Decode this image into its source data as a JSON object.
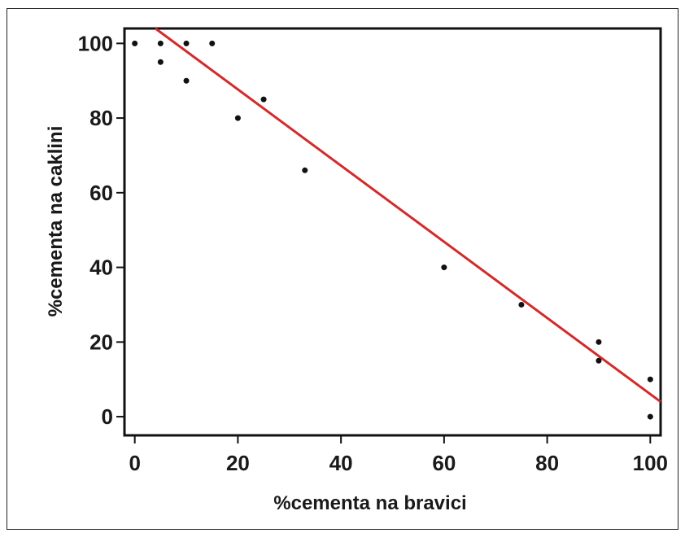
{
  "chart_data": {
    "type": "scatter",
    "title": "",
    "xlabel": "%cementa na bravici",
    "ylabel": "%cementa na caklini",
    "xlim": [
      -2,
      102
    ],
    "ylim": [
      -5,
      104
    ],
    "x_ticks": [
      0,
      20,
      40,
      60,
      80,
      100
    ],
    "y_ticks": [
      0,
      20,
      40,
      60,
      80,
      100
    ],
    "grid": false,
    "points": [
      {
        "x": 0,
        "y": 100
      },
      {
        "x": 5,
        "y": 100
      },
      {
        "x": 10,
        "y": 100
      },
      {
        "x": 15,
        "y": 100
      },
      {
        "x": 5,
        "y": 95
      },
      {
        "x": 10,
        "y": 90
      },
      {
        "x": 20,
        "y": 80
      },
      {
        "x": 25,
        "y": 85
      },
      {
        "x": 33,
        "y": 66
      },
      {
        "x": 60,
        "y": 40
      },
      {
        "x": 75,
        "y": 30
      },
      {
        "x": 90,
        "y": 20
      },
      {
        "x": 90,
        "y": 15
      },
      {
        "x": 100,
        "y": 10
      },
      {
        "x": 100,
        "y": 0
      }
    ],
    "fit_line": {
      "x": [
        4,
        102
      ],
      "y": [
        104,
        4
      ],
      "color": "#d42a2a"
    },
    "colors": {
      "points": "#111111",
      "fit_line": "#d42a2a",
      "axes": "#111111"
    }
  }
}
